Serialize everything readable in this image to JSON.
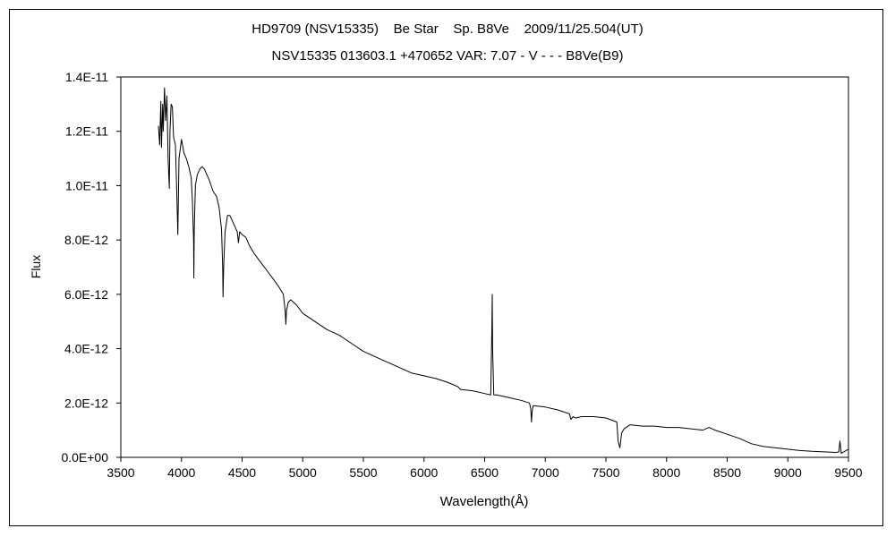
{
  "chart_data": {
    "type": "line",
    "title": "HD9709 (NSV15335)    Be Star    Sp. B8Ve    2009/11/25.504(UT)",
    "subtitle": "NSV15335 013603.1 +470652 VAR: 7.07 - V - - - B8Ve(B9)",
    "xlabel": "Wavelength(Å)",
    "ylabel": "Flux",
    "xlim": [
      3500,
      9500
    ],
    "ylim": [
      0,
      1.4e-11
    ],
    "xticks": [
      3500,
      4000,
      4500,
      5000,
      5500,
      6000,
      6500,
      7000,
      7500,
      8000,
      8500,
      9000,
      9500
    ],
    "xtick_labels": [
      "3500",
      "4000",
      "4500",
      "5000",
      "5500",
      "6000",
      "6500",
      "7000",
      "7500",
      "8000",
      "8500",
      "9000",
      "9500"
    ],
    "yticks": [
      0,
      2e-12,
      4e-12,
      6e-12,
      8e-12,
      1e-11,
      1.2e-11,
      1.4e-11
    ],
    "ytick_labels": [
      "0.0E+00",
      "2.0E-12",
      "4.0E-12",
      "6.0E-12",
      "8.0E-12",
      "1.0E-11",
      "1.2E-11",
      "1.4E-11"
    ],
    "grid": false,
    "legend": "none",
    "series": [
      {
        "x": [
          3810,
          3820,
          3830,
          3835,
          3845,
          3850,
          3860,
          3870,
          3880,
          3890,
          3900,
          3905,
          3915,
          3925,
          3935,
          3950,
          3960,
          3970,
          3980,
          4000,
          4020,
          4040,
          4060,
          4080,
          4090,
          4100,
          4102,
          4105,
          4115,
          4130,
          4150,
          4170,
          4190,
          4210,
          4230,
          4260,
          4290,
          4310,
          4330,
          4340,
          4343,
          4348,
          4360,
          4380,
          4400,
          4430,
          4460,
          4470,
          4480,
          4500,
          4530,
          4560,
          4600,
          4650,
          4700,
          4750,
          4800,
          4840,
          4855,
          4861,
          4866,
          4880,
          4900,
          4950,
          5000,
          5100,
          5200,
          5300,
          5400,
          5500,
          5600,
          5700,
          5800,
          5900,
          6000,
          6100,
          6200,
          6280,
          6300,
          6400,
          6500,
          6550,
          6560,
          6563,
          6566,
          6575,
          6600,
          6700,
          6800,
          6870,
          6880,
          6886,
          6892,
          6900,
          7000,
          7100,
          7200,
          7210,
          7230,
          7250,
          7300,
          7400,
          7500,
          7590,
          7600,
          7615,
          7630,
          7650,
          7700,
          7800,
          7900,
          8000,
          8100,
          8200,
          8300,
          8350,
          8400,
          8500,
          8600,
          8700,
          8800,
          8900,
          9000,
          9100,
          9200,
          9300,
          9400,
          9420,
          9430,
          9440,
          9500
        ],
        "y": [
          1.22e-11,
          1.15e-11,
          1.31e-11,
          1.14e-11,
          1.3e-11,
          1.2e-11,
          1.36e-11,
          1.24e-11,
          1.33e-11,
          1.1e-11,
          9.9e-12,
          1.2e-11,
          1.3e-11,
          1.29e-11,
          1.18e-11,
          1.15e-11,
          1e-11,
          8.2e-12,
          1.1e-11,
          1.17e-11,
          1.12e-11,
          1.1e-11,
          1.07e-11,
          1.03e-11,
          9.5e-12,
          8e-12,
          6.6e-12,
          8.3e-12,
          1e-11,
          1.04e-11,
          1.06e-11,
          1.07e-11,
          1.06e-11,
          1.04e-11,
          1.02e-11,
          9.8e-12,
          9.6e-12,
          9.2e-12,
          8.4e-12,
          7e-12,
          5.9e-12,
          7e-12,
          8.3e-12,
          8.9e-12,
          8.9e-12,
          8.6e-12,
          8.3e-12,
          7.9e-12,
          8.3e-12,
          8.2e-12,
          8.1e-12,
          7.8e-12,
          7.5e-12,
          7.2e-12,
          6.9e-12,
          6.6e-12,
          6.3e-12,
          6e-12,
          5.4e-12,
          4.9e-12,
          5.4e-12,
          5.7e-12,
          5.8e-12,
          5.6e-12,
          5.3e-12,
          5e-12,
          4.7e-12,
          4.5e-12,
          4.2e-12,
          3.9e-12,
          3.7e-12,
          3.5e-12,
          3.3e-12,
          3.1e-12,
          3e-12,
          2.9e-12,
          2.75e-12,
          2.6e-12,
          2.5e-12,
          2.45e-12,
          2.35e-12,
          2.3e-12,
          4.8e-12,
          6e-12,
          4e-12,
          2.3e-12,
          2.3e-12,
          2.2e-12,
          2.1e-12,
          2e-12,
          1.8e-12,
          1.3e-12,
          1.7e-12,
          1.9e-12,
          1.85e-12,
          1.75e-12,
          1.6e-12,
          1.4e-12,
          1.5e-12,
          1.45e-12,
          1.5e-12,
          1.5e-12,
          1.45e-12,
          1.3e-12,
          6e-13,
          3.5e-13,
          9e-13,
          1.05e-12,
          1.2e-12,
          1.15e-12,
          1.15e-12,
          1.1e-12,
          1.1e-12,
          1.05e-12,
          1e-12,
          1.1e-12,
          1e-12,
          8.5e-13,
          7e-13,
          5e-13,
          4e-13,
          3.5e-13,
          3e-13,
          2.5e-13,
          2.2e-13,
          2e-13,
          1.8e-13,
          2e-13,
          6e-13,
          1.5e-13,
          3e-13
        ]
      }
    ]
  }
}
